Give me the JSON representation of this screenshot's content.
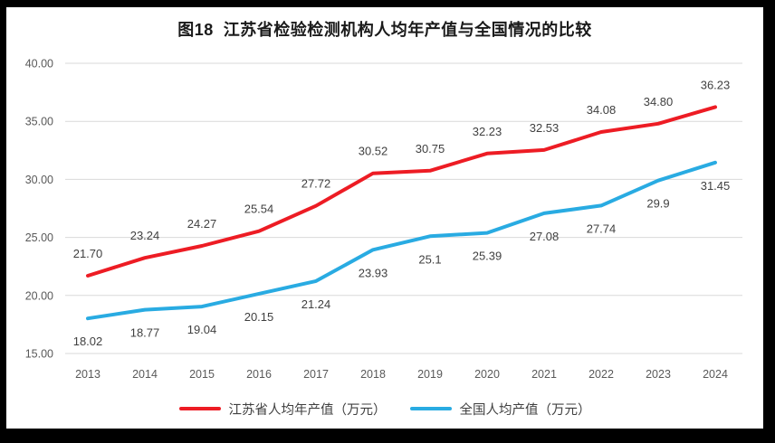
{
  "chart_data": {
    "type": "line",
    "title": "图18  江苏省检验检测机构人均年产值与全国情况的比较",
    "categories": [
      "2013",
      "2014",
      "2015",
      "2016",
      "2017",
      "2018",
      "2019",
      "2020",
      "2021",
      "2022",
      "2023",
      "2024"
    ],
    "series": [
      {
        "name": "江苏省人均年产值（万元）",
        "color": "#ed1c24",
        "values": [
          21.7,
          23.24,
          24.27,
          25.54,
          27.72,
          30.52,
          30.75,
          32.23,
          32.53,
          34.08,
          34.8,
          36.23
        ],
        "labels": [
          "21.70",
          "23.24",
          "24.27",
          "25.54",
          "27.72",
          "30.52",
          "30.75",
          "32.23",
          "32.53",
          "34.08",
          "34.80",
          "36.23"
        ],
        "label_position": "above"
      },
      {
        "name": "全国人均产值（万元）",
        "color": "#29abe2",
        "values": [
          18.02,
          18.77,
          19.04,
          20.15,
          21.24,
          23.93,
          25.1,
          25.39,
          27.08,
          27.74,
          29.9,
          31.45
        ],
        "labels": [
          "18.02",
          "18.77",
          "19.04",
          "20.15",
          "21.24",
          "23.93",
          "25.1",
          "25.39",
          "27.08",
          "27.74",
          "29.9",
          "31.45"
        ],
        "label_position": "below"
      }
    ],
    "yticks": [
      "40.00",
      "35.00",
      "30.00",
      "25.00",
      "20.00",
      "15.00"
    ],
    "ylim": [
      15,
      40
    ],
    "ytick_step": 5,
    "xlabel": "",
    "ylabel": "",
    "grid": true,
    "legend_position": "bottom"
  },
  "colors": {
    "frame_border": "#000000",
    "background": "#ffffff",
    "gridline": "#d9d9d9",
    "axis_tick_text": "#595959",
    "data_label_text": "#404040",
    "title_text": "#1a1a1a"
  }
}
